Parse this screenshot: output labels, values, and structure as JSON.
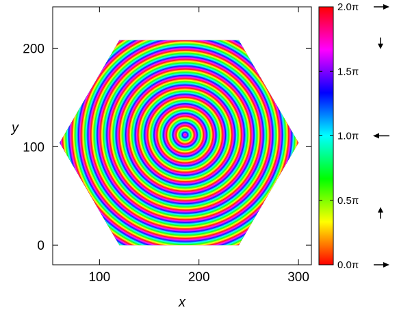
{
  "chart_data": {
    "type": "heatmap",
    "title": "",
    "xlabel": "x",
    "ylabel": "y",
    "xlim": [
      53,
      313
    ],
    "ylim": [
      -20,
      242
    ],
    "x_ticks": [
      {
        "value": 100,
        "label": "100"
      },
      {
        "value": 200,
        "label": "200"
      },
      {
        "value": 300,
        "label": "300"
      }
    ],
    "y_ticks": [
      {
        "value": 0,
        "label": "0"
      },
      {
        "value": 100,
        "label": "100"
      },
      {
        "value": 200,
        "label": "200"
      }
    ],
    "domain_shape": "hexagon",
    "hexagon_vertices": [
      [
        120,
        208
      ],
      [
        240,
        208
      ],
      [
        300,
        104
      ],
      [
        240,
        0
      ],
      [
        120,
        0
      ],
      [
        60,
        104
      ]
    ],
    "pattern": "concentric rings",
    "ring_center": [
      186,
      112
    ],
    "ring_spacing": 9.5,
    "colorbar": {
      "min": 0,
      "max": 2,
      "colormap": "hsv",
      "ticks": [
        {
          "value": 0.0,
          "label": "0.0π"
        },
        {
          "value": 0.5,
          "label": "0.5π"
        },
        {
          "value": 1.0,
          "label": "1.0π"
        },
        {
          "value": 1.5,
          "label": "1.5π"
        },
        {
          "value": 2.0,
          "label": "2.0π"
        }
      ],
      "arrows": [
        {
          "value": 2.0,
          "direction": "right"
        },
        {
          "value": 1.72,
          "direction": "down"
        },
        {
          "value": 1.0,
          "direction": "left"
        },
        {
          "value": 0.4,
          "direction": "up"
        },
        {
          "value": 0.0,
          "direction": "right"
        }
      ]
    }
  }
}
